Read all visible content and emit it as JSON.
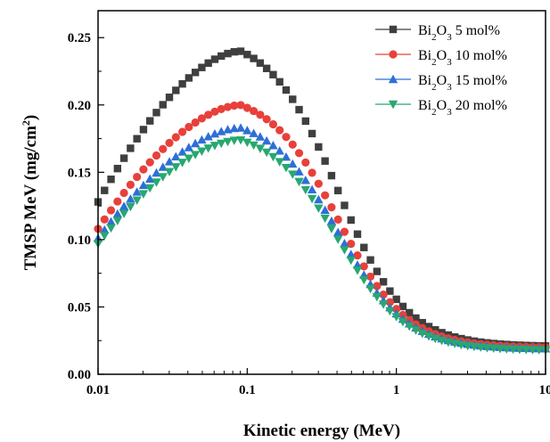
{
  "chart_data": {
    "type": "scatter",
    "title": "",
    "xlabel": "Kinetic energy (MeV)",
    "ylabel": "TMSP MeV (mg/cm²)",
    "ylabel_parts": {
      "main": "TMSP MeV (mg/cm",
      "sup": "2",
      "close": ")"
    },
    "x_scale": "log",
    "xlim": [
      0.01,
      10
    ],
    "ylim": [
      0.0,
      0.27
    ],
    "x_ticks": [
      0.01,
      0.1,
      1,
      10
    ],
    "x_tick_labels": [
      "0.01",
      "0.1",
      "1",
      "10"
    ],
    "y_ticks": [
      0.0,
      0.05,
      0.1,
      0.15,
      0.2,
      0.25
    ],
    "y_tick_labels": [
      "0.00",
      "0.05",
      "0.10",
      "0.15",
      "0.20",
      "0.25"
    ],
    "grid": false,
    "legend_position": "top-right",
    "series": [
      {
        "name": "Bi2O3 5 mol%",
        "label": {
          "main": "Bi",
          "sub1": "2",
          "mid": "O",
          "sub2": "3",
          "rest": "  5 mol%"
        },
        "marker": "square",
        "color": "#3f3f3f",
        "peak": 0.24,
        "peak_x": 0.09,
        "start": 0.128,
        "end": 0.021
      },
      {
        "name": "Bi2O3 10 mol%",
        "label": {
          "main": "Bi",
          "sub1": "2",
          "mid": "O",
          "sub2": "3",
          "rest": " 10 mol%"
        },
        "marker": "circle",
        "color": "#e8403a",
        "peak": 0.2,
        "peak_x": 0.09,
        "start": 0.108,
        "end": 0.02
      },
      {
        "name": "Bi2O3 15 mol%",
        "label": {
          "main": "Bi",
          "sub1": "2",
          "mid": "O",
          "sub2": "3",
          "rest": " 15 mol%"
        },
        "marker": "triangle-up",
        "color": "#2e6fd6",
        "peak": 0.183,
        "peak_x": 0.09,
        "start": 0.101,
        "end": 0.019
      },
      {
        "name": "Bi2O3 20 mol%",
        "label": {
          "main": "Bi",
          "sub1": "2",
          "mid": "O",
          "sub2": "3",
          "rest": " 20 mol%"
        },
        "marker": "triangle-down",
        "color": "#27a870",
        "peak": 0.174,
        "peak_x": 0.09,
        "start": 0.097,
        "end": 0.018
      }
    ]
  }
}
